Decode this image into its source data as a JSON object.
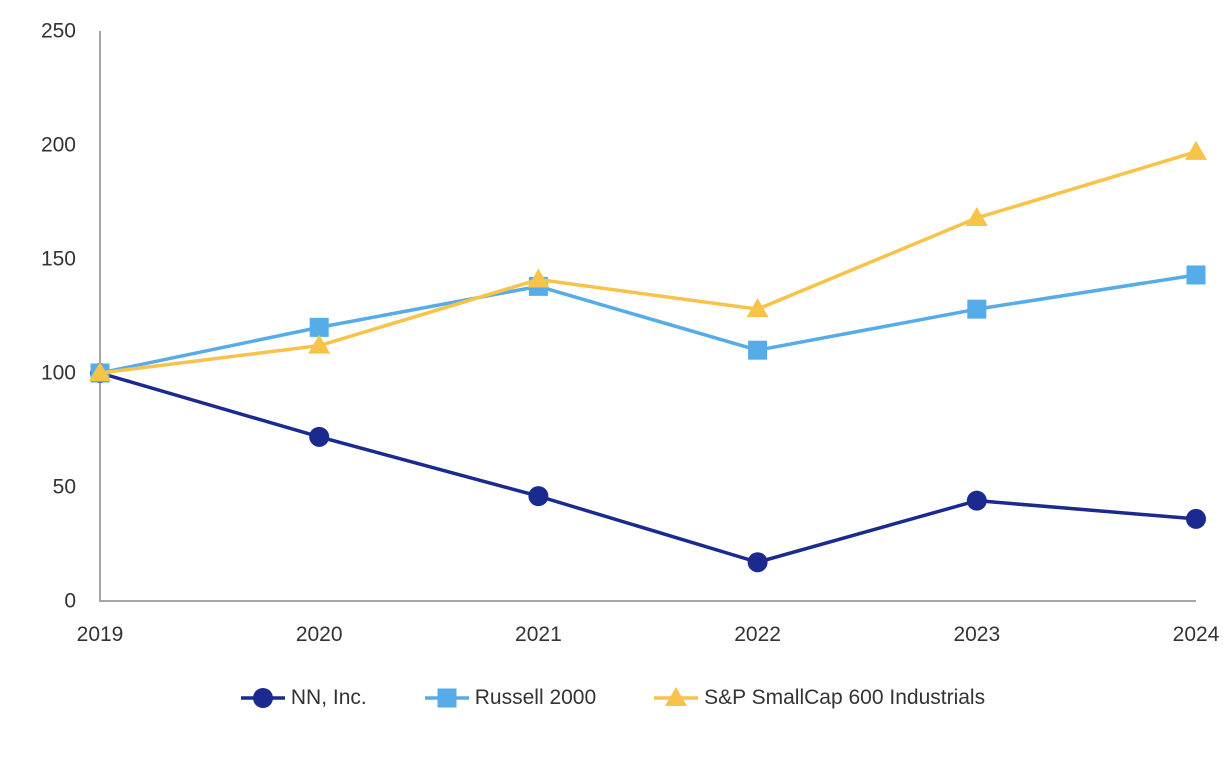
{
  "chart_data": {
    "type": "line",
    "title": "",
    "xlabel": "",
    "ylabel": "",
    "categories": [
      "2019",
      "2020",
      "2021",
      "2022",
      "2023",
      "2024"
    ],
    "series": [
      {
        "name": "NN, Inc.",
        "color": "#1b2a8f",
        "marker": "circle",
        "values": [
          100,
          72,
          46,
          17,
          44,
          36
        ]
      },
      {
        "name": "Russell 2000",
        "color": "#56ace8",
        "marker": "square",
        "values": [
          100,
          120,
          138,
          110,
          128,
          143
        ]
      },
      {
        "name": "S&P SmallCap 600 Industrials",
        "color": "#f7c348",
        "marker": "triangle",
        "values": [
          100,
          112,
          141,
          128,
          168,
          197
        ]
      }
    ],
    "ylim": [
      0,
      250
    ],
    "yticks": [
      0,
      50,
      100,
      150,
      200,
      250
    ],
    "grid": false,
    "legend_position": "bottom",
    "axis_color": "#a6a6a6",
    "text_color": "#333333"
  }
}
